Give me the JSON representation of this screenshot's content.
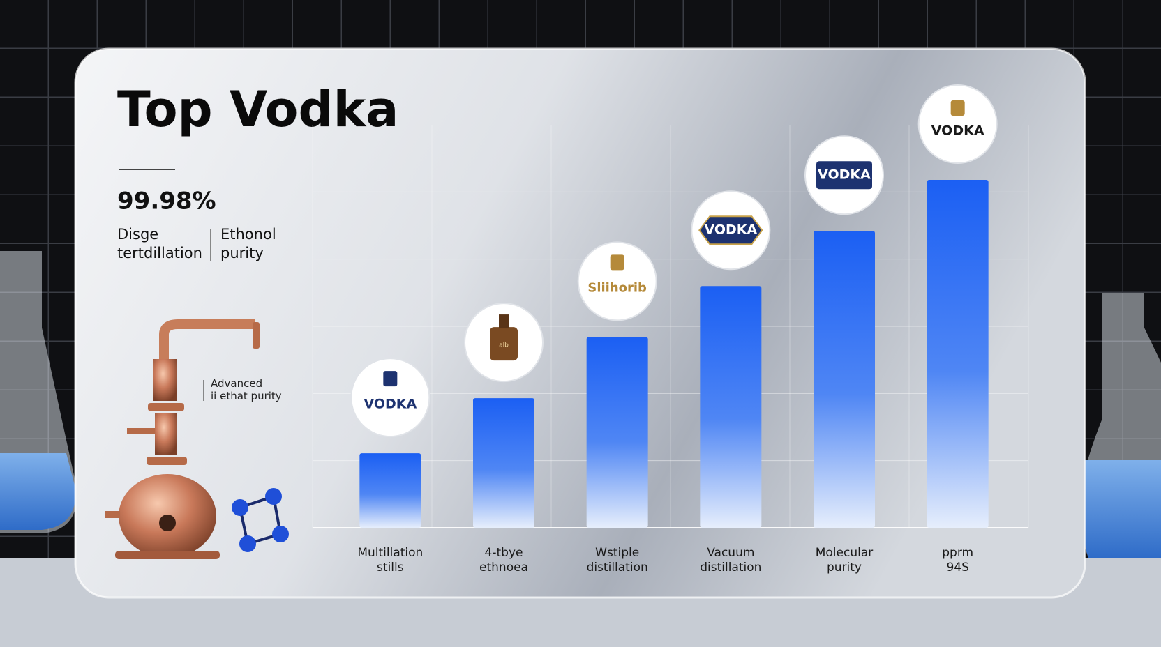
{
  "chart_data": {
    "type": "bar",
    "title": "Top Vodka",
    "stat": "99.98%",
    "stat_captions": [
      "Disge tertdillation",
      "Ethonol purity"
    ],
    "note": "Advanced ii ethat purity",
    "categories": [
      "Multillation stills",
      "4-tbye ethnoea",
      "Wstiple distillation",
      "Vacuum distillation",
      "Molecular purity",
      "pprm 94S"
    ],
    "values": [
      1.11,
      1.93,
      2.84,
      3.6,
      4.42,
      5.18
    ],
    "logos": [
      "VODKA",
      "alb",
      "Sliihorib",
      "VODKA",
      "VODKA",
      "VODKA"
    ],
    "color": "#1f62f2",
    "ylim": [
      0,
      6
    ],
    "yticks": [
      0,
      1,
      2,
      3,
      4,
      5
    ],
    "grid": true
  }
}
